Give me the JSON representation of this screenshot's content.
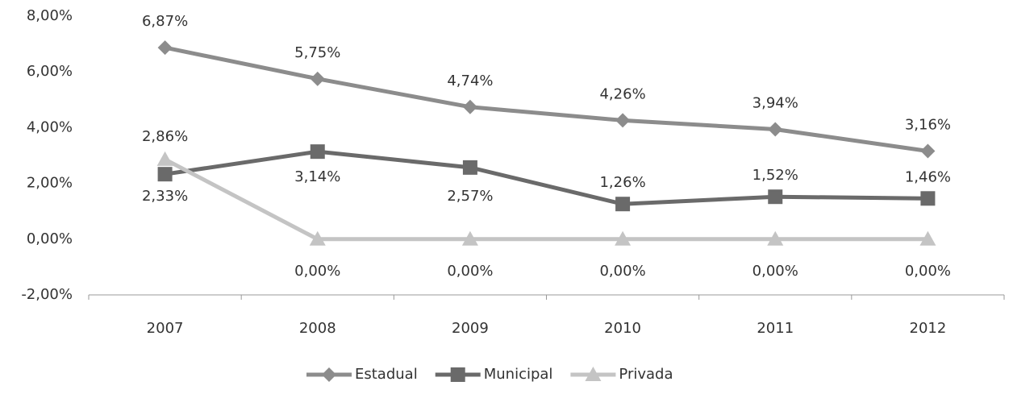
{
  "chart_data": {
    "type": "line",
    "categories": [
      "2007",
      "2008",
      "2009",
      "2010",
      "2011",
      "2012"
    ],
    "series": [
      {
        "name": "Estadual",
        "color": "#8c8c8c",
        "marker": "diamond",
        "values": [
          6.87,
          5.75,
          4.74,
          4.26,
          3.94,
          3.16
        ],
        "value_labels": [
          "6,87%",
          "5,75%",
          "4,74%",
          "4,26%",
          "3,94%",
          "3,16%"
        ]
      },
      {
        "name": "Municipal",
        "color": "#6a6a6a",
        "marker": "square",
        "values": [
          2.33,
          3.14,
          2.57,
          1.26,
          1.52,
          1.46
        ],
        "value_labels": [
          "2,33%",
          "3,14%",
          "2,57%",
          "1,26%",
          "1,52%",
          "1,46%"
        ]
      },
      {
        "name": "Privada",
        "color": "#c4c4c4",
        "marker": "triangle",
        "values": [
          2.86,
          0,
          0,
          0,
          0,
          0
        ],
        "value_labels": [
          "2,86%",
          "0,00%",
          "0,00%",
          "0,00%",
          "0,00%",
          "0,00%"
        ]
      }
    ],
    "ylim": [
      -2,
      8
    ],
    "yticks": [
      {
        "value": -2,
        "label": "-2,00%"
      },
      {
        "value": 0,
        "label": "0,00%"
      },
      {
        "value": 2,
        "label": "2,00%"
      },
      {
        "value": 4,
        "label": "4,00%"
      },
      {
        "value": 6,
        "label": "6,00%"
      },
      {
        "value": 8,
        "label": "8,00%"
      }
    ],
    "grid": false,
    "legend": "bottom"
  }
}
